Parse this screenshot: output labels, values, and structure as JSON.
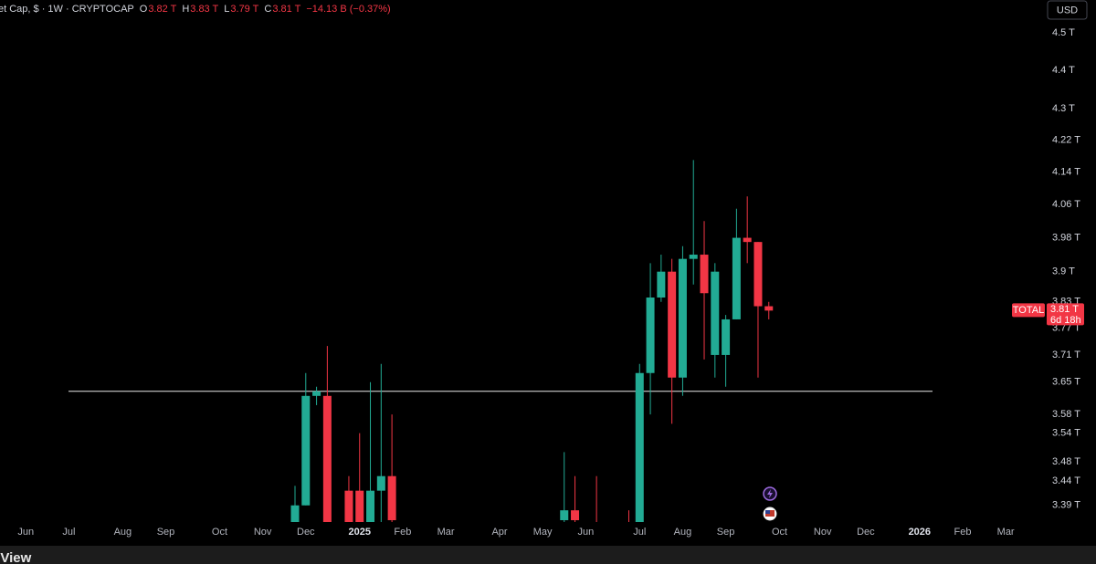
{
  "header": {
    "symbol": "et Cap, $ · 1W · CRYPTOCAP",
    "ohlc": [
      {
        "key": "O",
        "value": "3.82 T"
      },
      {
        "key": "H",
        "value": "3.83 T"
      },
      {
        "key": "L",
        "value": "3.79 T"
      },
      {
        "key": "C",
        "value": "3.81 T"
      }
    ],
    "change": "−14.13 B (−0.37%)"
  },
  "currency_button": "USD",
  "footer_logo": "eView",
  "chart_data": {
    "type": "candlestick",
    "log_scale": true,
    "up_color": "#22ab94",
    "down_color": "#f23645",
    "categories": [
      "Jun",
      null,
      null,
      null,
      "Jul",
      null,
      null,
      null,
      null,
      "Aug",
      null,
      null,
      null,
      "Sep",
      null,
      null,
      null,
      null,
      "Oct",
      null,
      null,
      null,
      "Nov",
      null,
      null,
      null,
      "Dec",
      null,
      null,
      null,
      null,
      "2025",
      null,
      null,
      null,
      "Feb",
      null,
      null,
      null,
      "Mar",
      null,
      null,
      null,
      null,
      "Apr",
      null,
      null,
      null,
      "May",
      null,
      null,
      null,
      "Jun",
      null,
      null,
      null,
      null,
      "Jul",
      null,
      null,
      null,
      "Aug",
      null,
      null,
      null,
      "Sep",
      null,
      null,
      null,
      null,
      "Oct",
      null,
      null,
      null,
      "Nov",
      null,
      null,
      null,
      "Dec",
      null,
      null,
      null,
      null,
      "2026",
      null,
      null,
      null,
      "Feb",
      null,
      null,
      null,
      "Mar"
    ],
    "open": [
      null,
      null,
      null,
      null,
      null,
      null,
      null,
      null,
      null,
      null,
      null,
      null,
      null,
      null,
      null,
      null,
      null,
      null,
      null,
      null,
      null,
      null,
      null,
      null,
      null,
      3.35,
      3.39,
      3.62,
      3.62,
      null,
      3.42,
      3.42,
      3.35,
      3.42,
      3.45,
      null,
      null,
      null,
      null,
      null,
      null,
      null,
      null,
      null,
      null,
      null,
      null,
      null,
      null,
      null,
      3.36,
      3.38,
      null,
      3.33,
      null,
      null,
      3.33,
      3.35,
      3.67,
      3.84,
      3.9,
      3.66,
      3.93,
      3.94,
      3.71,
      3.71,
      3.79,
      3.98,
      3.97,
      3.82,
      null,
      null,
      null,
      null,
      null,
      null,
      null,
      null,
      null,
      null,
      null,
      null,
      null,
      null,
      null,
      null,
      null,
      null,
      null,
      null,
      null,
      null
    ],
    "high": [
      null,
      null,
      null,
      null,
      null,
      null,
      null,
      null,
      null,
      null,
      null,
      null,
      null,
      null,
      null,
      null,
      null,
      null,
      null,
      null,
      null,
      null,
      null,
      null,
      null,
      3.43,
      3.67,
      3.64,
      3.73,
      null,
      3.45,
      3.54,
      3.65,
      3.69,
      3.58,
      null,
      null,
      null,
      null,
      null,
      null,
      null,
      null,
      null,
      null,
      null,
      null,
      null,
      null,
      null,
      3.5,
      3.45,
      null,
      3.45,
      null,
      null,
      3.38,
      3.69,
      3.92,
      3.94,
      3.93,
      3.96,
      4.17,
      4.02,
      3.92,
      3.8,
      4.05,
      4.08,
      3.97,
      3.83,
      null,
      null,
      null,
      null,
      null,
      null,
      null,
      null,
      null,
      null,
      null,
      null,
      null,
      null,
      null,
      null,
      null,
      null,
      null,
      null,
      null,
      null
    ],
    "low": [
      null,
      null,
      null,
      null,
      null,
      null,
      null,
      null,
      null,
      null,
      null,
      null,
      null,
      null,
      null,
      null,
      null,
      null,
      null,
      null,
      null,
      null,
      null,
      null,
      null,
      3.3,
      3.39,
      3.6,
      3.3,
      null,
      3.3,
      3.3,
      3.3,
      3.33,
      3.32,
      null,
      null,
      null,
      null,
      null,
      null,
      null,
      null,
      null,
      null,
      null,
      null,
      null,
      null,
      null,
      3.34,
      3.34,
      null,
      3.3,
      null,
      null,
      3.3,
      3.3,
      3.58,
      3.83,
      3.56,
      3.62,
      3.87,
      3.7,
      3.66,
      3.64,
      3.79,
      3.92,
      3.66,
      3.79,
      null,
      null,
      null,
      null,
      null,
      null,
      null,
      null,
      null,
      null,
      null,
      null,
      null,
      null,
      null,
      null,
      null,
      null,
      null,
      null,
      null,
      null
    ],
    "close": [
      null,
      null,
      null,
      null,
      null,
      null,
      null,
      null,
      null,
      null,
      null,
      null,
      null,
      null,
      null,
      null,
      null,
      null,
      null,
      null,
      null,
      null,
      null,
      null,
      null,
      3.39,
      3.62,
      3.63,
      3.35,
      null,
      3.34,
      3.35,
      3.42,
      3.45,
      3.36,
      null,
      null,
      null,
      null,
      null,
      null,
      null,
      null,
      null,
      null,
      null,
      null,
      null,
      null,
      null,
      3.38,
      3.36,
      null,
      3.32,
      null,
      null,
      3.32,
      3.67,
      3.84,
      3.9,
      3.66,
      3.93,
      3.94,
      3.85,
      3.9,
      3.79,
      3.98,
      3.97,
      3.82,
      3.81,
      null,
      null,
      null,
      null,
      null,
      null,
      null,
      null,
      null,
      null,
      null,
      null,
      null,
      null,
      null,
      null,
      null,
      null,
      null,
      null,
      null,
      null
    ],
    "ylim": [
      3.36,
      4.59
    ],
    "yticks": [
      {
        "value": 4.5,
        "label": "4.5 T"
      },
      {
        "value": 4.4,
        "label": "4.4 T"
      },
      {
        "value": 4.3,
        "label": "4.3 T"
      },
      {
        "value": 4.22,
        "label": "4.22 T"
      },
      {
        "value": 4.14,
        "label": "4.14 T"
      },
      {
        "value": 4.06,
        "label": "4.06 T"
      },
      {
        "value": 3.98,
        "label": "3.98 T"
      },
      {
        "value": 3.9,
        "label": "3.9 T"
      },
      {
        "value": 3.83,
        "label": "3.83 T"
      },
      {
        "value": 3.77,
        "label": "3.77 T"
      },
      {
        "value": 3.71,
        "label": "3.71 T"
      },
      {
        "value": 3.65,
        "label": "3.65 T"
      },
      {
        "value": 3.58,
        "label": "3.58 T"
      },
      {
        "value": 3.54,
        "label": "3.54 T"
      },
      {
        "value": 3.48,
        "label": "3.48 T"
      },
      {
        "value": 3.44,
        "label": "3.44 T"
      },
      {
        "value": 3.39,
        "label": "3.39 T"
      }
    ],
    "horizontal_line": 3.63,
    "last_price": {
      "name": "TOTAL",
      "value": 3.81,
      "label": "3.81 T",
      "countdown": "6d 18h"
    }
  }
}
